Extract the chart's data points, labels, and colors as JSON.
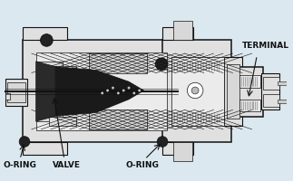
{
  "bg_color": "#dce8f0",
  "labels": {
    "o_ring_left": "O-RING",
    "valve": "VALVE",
    "o_ring_right": "O-RING",
    "terminal": "TERMINAL"
  },
  "label_fontsize": 6.5,
  "label_fontweight": "bold",
  "lc": "#111111",
  "fill_body": "#e0e0e0",
  "fill_inner": "#f0f0f0",
  "fill_dark": "#222222",
  "fill_speckle": "#c8c8c8",
  "fill_white": "#ffffff"
}
